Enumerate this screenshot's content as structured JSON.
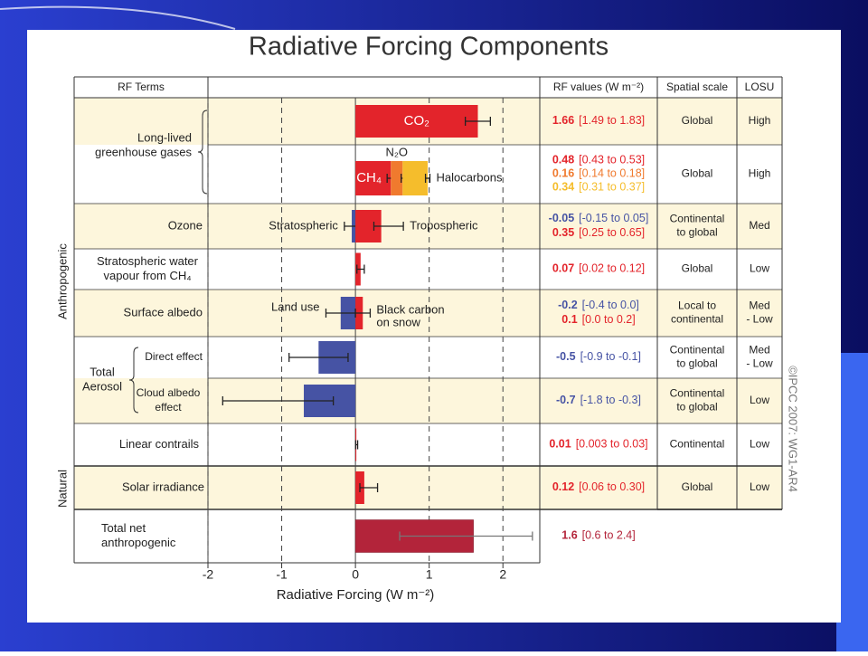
{
  "title": "Radiative Forcing Components",
  "credit": "©IPCC 2007: WG1-AR4",
  "chart_data": {
    "type": "forcing_bar",
    "headers": [
      "RF Terms",
      "RF values (W m⁻²)",
      "Spatial scale",
      "LOSU"
    ],
    "xlabel": "Radiative Forcing (W m⁻²)",
    "xlim": [
      -2,
      2.5
    ],
    "xticks": [
      -2,
      -1,
      0,
      1,
      2
    ],
    "side_labels": [
      "Anthropogenic",
      "Natural"
    ],
    "groups": [
      {
        "label": [
          "Long-lived",
          "greenhouse gases"
        ]
      },
      {
        "label": [
          "Total",
          "Aerosol"
        ]
      }
    ],
    "rows": [
      {
        "terms": [
          {
            "name": [
              "CO₂"
            ],
            "value": 1.66,
            "low": 1.49,
            "high": 1.83,
            "range": "[1.49 to 1.83]",
            "color": "#e3242b"
          }
        ],
        "scale": [
          "Global"
        ],
        "losu": [
          "High"
        ]
      },
      {
        "stacked": true,
        "terms": [
          {
            "name": [
              "CH₄"
            ],
            "value": 0.48,
            "low": 0.43,
            "high": 0.53,
            "range": "[0.43 to 0.53]",
            "color": "#e3242b"
          },
          {
            "name": [
              "N₂O"
            ],
            "value": 0.16,
            "low": 0.14,
            "high": 0.18,
            "range": "[0.14 to 0.18]",
            "color": "#f07a2e"
          },
          {
            "name": [
              "Halocarbons"
            ],
            "value": 0.34,
            "low": 0.31,
            "high": 0.37,
            "range": "[0.31 to 0.37]",
            "color": "#f5bd2c"
          }
        ],
        "scale": [
          "Global"
        ],
        "losu": [
          "High"
        ]
      },
      {
        "label": [
          "Ozone"
        ],
        "terms": [
          {
            "name": [
              "Stratospheric"
            ],
            "value": -0.05,
            "low": -0.15,
            "high": 0.05,
            "range": "[-0.15 to 0.05]",
            "color": "#4653a4"
          },
          {
            "name": [
              "Tropospheric"
            ],
            "value": 0.35,
            "low": 0.25,
            "high": 0.65,
            "range": "[0.25 to 0.65]",
            "color": "#e3242b"
          }
        ],
        "scale": [
          "Continental",
          "to global"
        ],
        "losu": [
          "Med"
        ]
      },
      {
        "label": [
          "Stratospheric water",
          "vapour from CH₄"
        ],
        "terms": [
          {
            "value": 0.07,
            "low": 0.02,
            "high": 0.12,
            "range": "[0.02 to 0.12]",
            "color": "#e3242b"
          }
        ],
        "scale": [
          "Global"
        ],
        "losu": [
          "Low"
        ]
      },
      {
        "label": [
          "Surface albedo"
        ],
        "terms": [
          {
            "name": [
              "Land use"
            ],
            "value": -0.2,
            "low": -0.4,
            "high": 0.0,
            "range": "[-0.4 to 0.0]",
            "color": "#4653a4"
          },
          {
            "name": [
              "Black carbon",
              "on snow"
            ],
            "value": 0.1,
            "low": 0.0,
            "high": 0.2,
            "range": "[0.0 to 0.2]",
            "color": "#e3242b"
          }
        ],
        "scale": [
          "Local to",
          "continental"
        ],
        "losu": [
          "Med",
          "- Low"
        ]
      },
      {
        "label": [
          "Direct effect"
        ],
        "terms": [
          {
            "value": -0.5,
            "low": -0.9,
            "high": -0.1,
            "range": "[-0.9 to -0.1]",
            "color": "#4653a4"
          }
        ],
        "scale": [
          "Continental",
          "to global"
        ],
        "losu": [
          "Med",
          "- Low"
        ]
      },
      {
        "label": [
          "Cloud albedo",
          "effect"
        ],
        "terms": [
          {
            "value": -0.7,
            "low": -1.8,
            "high": -0.3,
            "range": "[-1.8 to -0.3]",
            "color": "#4653a4"
          }
        ],
        "scale": [
          "Continental",
          "to global"
        ],
        "losu": [
          "Low"
        ]
      },
      {
        "label": [
          "Linear contrails"
        ],
        "terms": [
          {
            "value": 0.01,
            "low": 0.003,
            "high": 0.03,
            "range": "[0.003 to 0.03]",
            "color": "#e3242b"
          }
        ],
        "scale": [
          "Continental"
        ],
        "losu": [
          "Low"
        ]
      },
      {
        "label": [
          "Solar irradiance"
        ],
        "terms": [
          {
            "value": 0.12,
            "low": 0.06,
            "high": 0.3,
            "range": "[0.06 to 0.30]",
            "color": "#e3242b"
          }
        ],
        "scale": [
          "Global"
        ],
        "losu": [
          "Low"
        ]
      },
      {
        "label": [
          "Total net",
          "anthropogenic"
        ],
        "terms": [
          {
            "value": 1.6,
            "low": 0.6,
            "high": 2.4,
            "range": "[0.6 to 2.4]",
            "color": "#b3243a"
          }
        ]
      }
    ]
  }
}
